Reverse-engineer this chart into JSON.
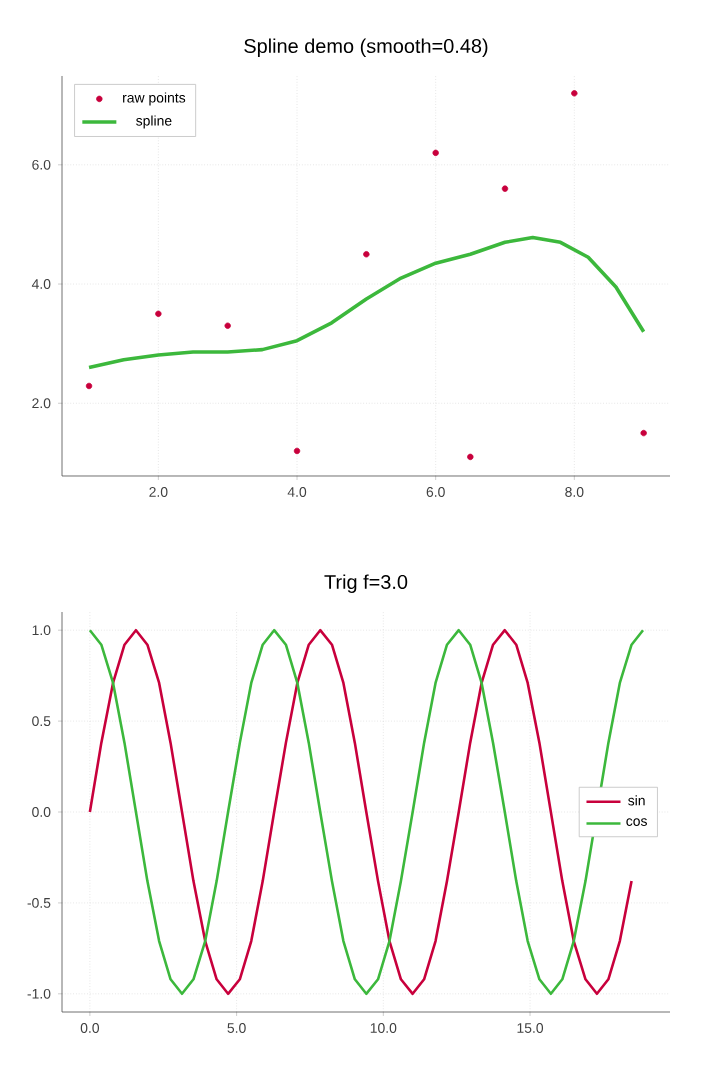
{
  "chart_data": [
    {
      "type": "scatter",
      "title": "Spline demo (smooth=0.48)",
      "xlim": [
        0.61,
        9.38
      ],
      "ylim": [
        0.78,
        7.49
      ],
      "xticks": [
        {
          "value": 2,
          "label": "2.0"
        },
        {
          "value": 4,
          "label": "4.0"
        },
        {
          "value": 6,
          "label": "6.0"
        },
        {
          "value": 8,
          "label": "8.0"
        }
      ],
      "yticks": [
        {
          "value": 2,
          "label": "2.0"
        },
        {
          "value": 4,
          "label": "4.0"
        },
        {
          "value": 6,
          "label": "6.0"
        }
      ],
      "grid": true,
      "legend": "top left",
      "series": [
        {
          "name": "raw points",
          "type": "scatter",
          "marker": "circle",
          "color": "#c8003c",
          "x": [
            1,
            2,
            3,
            4,
            5,
            6,
            6.5,
            7,
            8,
            9
          ],
          "values": [
            2.29,
            3.5,
            3.3,
            1.2,
            4.5,
            6.2,
            1.1,
            5.6,
            7.2,
            1.5
          ]
        },
        {
          "name": "spline",
          "type": "line",
          "color": "#3cb83c",
          "x": [
            1,
            1.5,
            2,
            2.5,
            3,
            3.5,
            4,
            4.5,
            5,
            5.5,
            6,
            6.5,
            7,
            7.4,
            7.8,
            8.2,
            8.6,
            9
          ],
          "values": [
            2.6,
            2.73,
            2.81,
            2.86,
            2.86,
            2.9,
            3.05,
            3.35,
            3.75,
            4.1,
            4.35,
            4.5,
            4.7,
            4.78,
            4.7,
            4.45,
            3.95,
            3.2
          ]
        }
      ]
    },
    {
      "type": "line",
      "title": "Trig f=3.0",
      "xlim": [
        -0.95,
        19.77
      ],
      "ylim": [
        -1.1,
        1.1
      ],
      "xticks": [
        {
          "value": 0,
          "label": "0.0"
        },
        {
          "value": 5,
          "label": "5.0"
        },
        {
          "value": 10,
          "label": "10.0"
        },
        {
          "value": 15,
          "label": "15.0"
        }
      ],
      "yticks": [
        {
          "value": -1,
          "label": "-1.0"
        },
        {
          "value": -0.5,
          "label": "-0.5"
        },
        {
          "value": 0,
          "label": "0.0"
        },
        {
          "value": 0.5,
          "label": "0.5"
        },
        {
          "value": 1,
          "label": "1.0"
        }
      ],
      "grid": true,
      "legend": "right",
      "x": [
        0,
        0.39,
        0.79,
        1.18,
        1.57,
        1.96,
        2.36,
        2.75,
        3.14,
        3.53,
        3.93,
        4.32,
        4.71,
        5.11,
        5.5,
        5.89,
        6.28,
        6.68,
        7.07,
        7.46,
        7.85,
        8.25,
        8.64,
        9.03,
        9.42,
        9.82,
        10.21,
        10.6,
        11.0,
        11.39,
        11.78,
        12.17,
        12.57,
        12.96,
        13.35,
        13.74,
        14.14,
        14.53,
        14.92,
        15.32,
        15.71,
        16.1,
        16.49,
        16.89,
        17.28,
        17.67,
        18.06,
        18.46,
        18.85
      ],
      "series": [
        {
          "name": "sin",
          "color": "#c8003c",
          "values": [
            0,
            0.38,
            0.71,
            0.92,
            1,
            0.92,
            0.71,
            0.38,
            0,
            -0.38,
            -0.71,
            -0.92,
            -1,
            -0.92,
            -0.71,
            -0.38,
            0,
            0.38,
            0.71,
            0.92,
            1,
            0.92,
            0.71,
            0.38,
            0,
            -0.38,
            -0.71,
            -0.92,
            -1,
            -0.92,
            -0.71,
            -0.38,
            0,
            0.38,
            0.71,
            0.92,
            1,
            0.92,
            0.71,
            0.38,
            0,
            -0.38,
            -0.71,
            -0.92,
            -1,
            -0.92,
            -0.71,
            -0.38,
            null
          ]
        },
        {
          "name": "cos",
          "color": "#3cb83c",
          "values": [
            1,
            0.92,
            0.71,
            0.38,
            0,
            -0.38,
            -0.71,
            -0.92,
            -1,
            -0.92,
            -0.71,
            -0.38,
            0,
            0.38,
            0.71,
            0.92,
            1,
            0.92,
            0.71,
            0.38,
            0,
            -0.38,
            -0.71,
            -0.92,
            -1,
            -0.92,
            -0.71,
            -0.38,
            0,
            0.38,
            0.71,
            0.92,
            1,
            0.92,
            0.71,
            0.38,
            0,
            -0.38,
            -0.71,
            -0.92,
            -1,
            -0.92,
            -0.71,
            -0.38,
            null,
            0.38,
            0.71,
            0.92,
            1
          ]
        }
      ]
    }
  ]
}
